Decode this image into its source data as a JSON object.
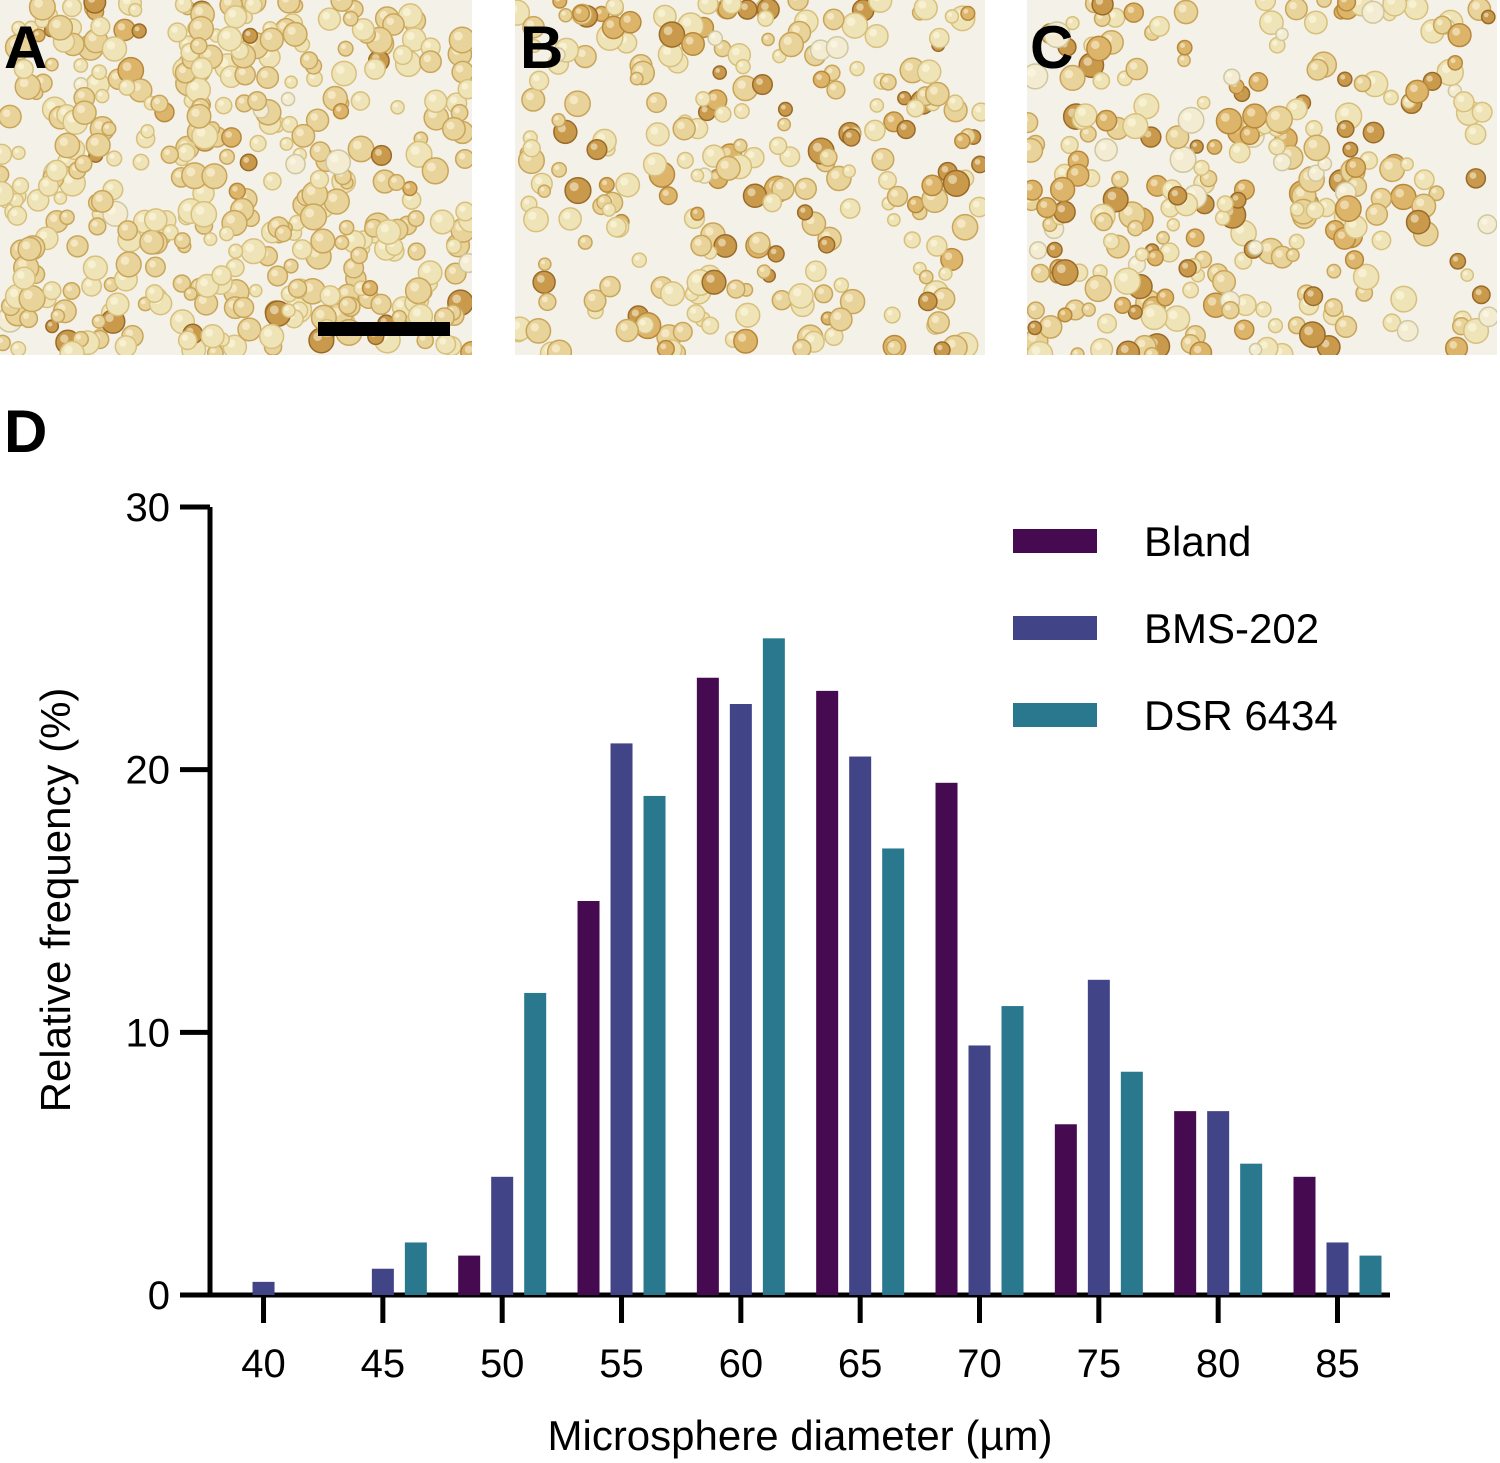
{
  "panel_labels": [
    "A",
    "B",
    "C"
  ],
  "chart_data": {
    "type": "bar",
    "panel_label": "D",
    "xlabel": "Microsphere diameter (µm)",
    "ylabel": "Relative frequency (%)",
    "x": [
      40,
      45,
      50,
      55,
      60,
      65,
      70,
      75,
      80,
      85
    ],
    "series": [
      {
        "name": "Bland",
        "color": "#450a50",
        "values": [
          0,
          0,
          1.5,
          15,
          23.5,
          23,
          19.5,
          6.5,
          7,
          4.5
        ]
      },
      {
        "name": "BMS-202",
        "color": "#414487",
        "values": [
          0.5,
          1,
          4.5,
          21,
          22.5,
          20.5,
          9.5,
          12,
          7,
          2
        ]
      },
      {
        "name": "DSR 6434",
        "color": "#2a788e",
        "values": [
          0,
          2,
          11.5,
          19,
          25,
          17,
          11,
          8.5,
          5,
          1.5
        ]
      }
    ],
    "xlim": [
      36.5,
      87.2
    ],
    "ylim": [
      0,
      30
    ],
    "xticks": [
      40,
      45,
      50,
      55,
      60,
      65,
      70,
      75,
      80,
      85
    ],
    "yticks": [
      0,
      10,
      20,
      30
    ],
    "legend": "upper right",
    "grid": false
  }
}
